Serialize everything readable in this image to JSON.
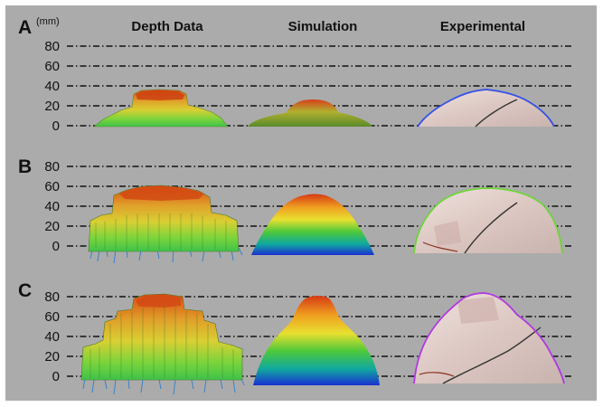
{
  "unit_label": "(mm)",
  "columns": [
    "Depth Data",
    "Simulation",
    "Experimental"
  ],
  "y_ticks": [
    "80",
    "60",
    "40",
    "20",
    "0"
  ],
  "panels": [
    {
      "letter": "A"
    },
    {
      "letter": "B"
    },
    {
      "letter": "C"
    }
  ],
  "colors": {
    "background": "#ababab",
    "depth_top": "#d84a12",
    "depth_mid": "#d9cf33",
    "depth_low": "#3fc24a",
    "spikes": "#3a82c8",
    "sim_top": "#e04a1a",
    "sim_bottom": "#1a2fd0",
    "outline_A": "#3550e8",
    "outline_B": "#6fd43a",
    "outline_C": "#b03ae0"
  }
}
